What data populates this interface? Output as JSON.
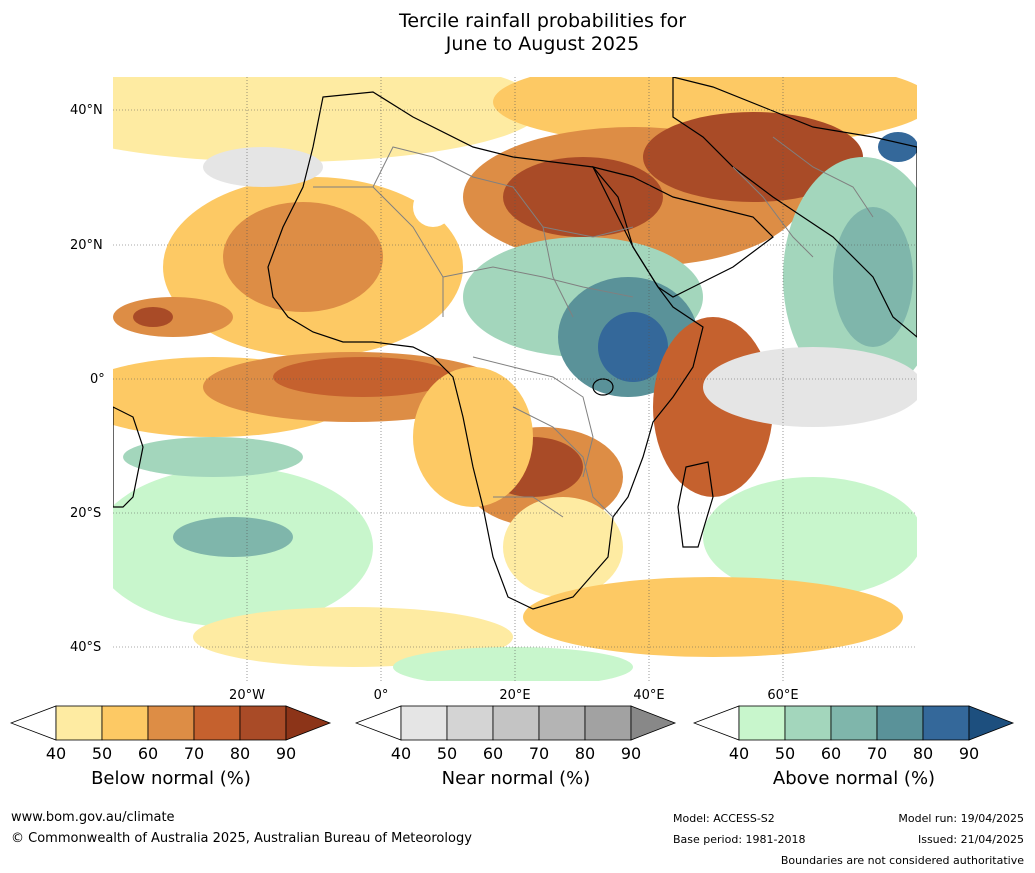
{
  "title": {
    "line1": "Tercile rainfall probabilities for",
    "line2": "June to August 2025"
  },
  "map": {
    "lat_labels": [
      "40°N",
      "20°N",
      "0°",
      "20°S",
      "40°S"
    ],
    "lon_labels": [
      "20°W",
      "0°",
      "20°E",
      "40°E",
      "60°E"
    ]
  },
  "colorbars": [
    {
      "label": "Below normal (%)",
      "ticks": [
        "40",
        "50",
        "60",
        "70",
        "80",
        "90"
      ],
      "colors": [
        "#ffffff",
        "#feeba2",
        "#fdc964",
        "#dd8d45",
        "#c5612e",
        "#a94b27",
        "#8c3418"
      ]
    },
    {
      "label": "Near normal (%)",
      "ticks": [
        "40",
        "50",
        "60",
        "70",
        "80",
        "90"
      ],
      "colors": [
        "#ffffff",
        "#e5e5e5",
        "#d4d4d4",
        "#c4c4c4",
        "#b4b4b4",
        "#a2a2a2",
        "#888888"
      ]
    },
    {
      "label": "Above normal (%)",
      "ticks": [
        "40",
        "50",
        "60",
        "70",
        "80",
        "90"
      ],
      "colors": [
        "#ffffff",
        "#c8f6cc",
        "#a3d6bc",
        "#7fb6ab",
        "#5a9299",
        "#34689a",
        "#1d4f7e"
      ]
    }
  ],
  "footer": {
    "url": "www.bom.gov.au/climate",
    "copyright": "© Commonwealth of Australia 2025, Australian Bureau of Meteorology",
    "model": "Model: ACCESS-S2",
    "base_period": "Base period: 1981-2018",
    "model_run": "Model run: 19/04/2025",
    "issued": "Issued: 21/04/2025",
    "disclaimer": "Boundaries are not considered authoritative"
  }
}
